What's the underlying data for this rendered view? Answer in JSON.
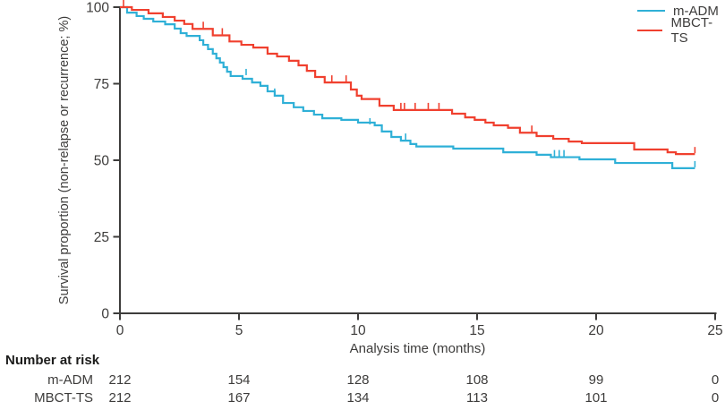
{
  "figure": {
    "background": "#ffffff",
    "text_color": "#3d3c3b",
    "axis_color": "#3d3c3b"
  },
  "chart_data": {
    "type": "line",
    "subtype": "kaplan-meier-step",
    "title": "",
    "xlabel": "Analysis time (months)",
    "ylabel": "Survival proportion (non-relapse or recurrence; %)",
    "xlim": [
      0,
      25
    ],
    "ylim": [
      0,
      100
    ],
    "x_ticks": [
      0,
      5,
      10,
      15,
      20,
      25
    ],
    "y_ticks": [
      0,
      25,
      50,
      75,
      100
    ],
    "grid": false,
    "legend_position": "top-right",
    "series": [
      {
        "name": "m-ADM",
        "color": "#2FB0D7",
        "step_points": [
          [
            0,
            100
          ],
          [
            0.3,
            98.2
          ],
          [
            0.7,
            97.1
          ],
          [
            1.0,
            96.2
          ],
          [
            1.4,
            95.3
          ],
          [
            1.9,
            94.4
          ],
          [
            2.3,
            93.0
          ],
          [
            2.55,
            91.5
          ],
          [
            2.8,
            90.6
          ],
          [
            3.35,
            89.2
          ],
          [
            3.5,
            87.7
          ],
          [
            3.7,
            86.3
          ],
          [
            3.9,
            84.8
          ],
          [
            4.05,
            83.3
          ],
          [
            4.2,
            81.9
          ],
          [
            4.35,
            80.4
          ],
          [
            4.5,
            78.9
          ],
          [
            4.65,
            77.5
          ],
          [
            5.15,
            76.6
          ],
          [
            5.55,
            75.4
          ],
          [
            5.9,
            74.3
          ],
          [
            6.2,
            72.5
          ],
          [
            6.5,
            71.1
          ],
          [
            6.85,
            68.7
          ],
          [
            7.3,
            67.3
          ],
          [
            7.7,
            66.1
          ],
          [
            8.15,
            64.9
          ],
          [
            8.5,
            63.7
          ],
          [
            9.3,
            63.2
          ],
          [
            10.0,
            62.3
          ],
          [
            10.7,
            61.4
          ],
          [
            11.0,
            59.4
          ],
          [
            11.4,
            57.6
          ],
          [
            11.8,
            56.4
          ],
          [
            12.2,
            55.3
          ],
          [
            12.45,
            54.5
          ],
          [
            14.0,
            53.8
          ],
          [
            16.1,
            52.6
          ],
          [
            17.5,
            51.8
          ],
          [
            18.1,
            51.0
          ],
          [
            19.3,
            50.3
          ],
          [
            20.8,
            49.1
          ],
          [
            23.2,
            47.4
          ],
          [
            24.15,
            47.4
          ]
        ],
        "censor_marks": [
          [
            5.3,
            77.5
          ],
          [
            6.5,
            71.1
          ],
          [
            10.5,
            61.4
          ],
          [
            12.0,
            56.4
          ],
          [
            18.25,
            51.0
          ],
          [
            18.45,
            51.0
          ],
          [
            18.65,
            51.0
          ],
          [
            24.15,
            47.4
          ]
        ]
      },
      {
        "name": "MBCT-TS",
        "color": "#F0402F",
        "step_points": [
          [
            0,
            100
          ],
          [
            0.5,
            99.1
          ],
          [
            1.2,
            98.0
          ],
          [
            1.8,
            96.8
          ],
          [
            2.3,
            95.6
          ],
          [
            2.7,
            94.5
          ],
          [
            3.05,
            92.9
          ],
          [
            3.9,
            90.8
          ],
          [
            4.6,
            88.8
          ],
          [
            5.1,
            87.7
          ],
          [
            5.6,
            86.8
          ],
          [
            6.2,
            84.8
          ],
          [
            6.6,
            83.9
          ],
          [
            7.1,
            82.5
          ],
          [
            7.5,
            81.0
          ],
          [
            7.85,
            79.2
          ],
          [
            8.2,
            77.2
          ],
          [
            8.6,
            75.4
          ],
          [
            9.7,
            73.1
          ],
          [
            9.95,
            71.1
          ],
          [
            10.15,
            70.0
          ],
          [
            10.9,
            67.8
          ],
          [
            11.5,
            66.4
          ],
          [
            13.95,
            65.2
          ],
          [
            14.5,
            64.0
          ],
          [
            14.9,
            63.2
          ],
          [
            15.35,
            62.3
          ],
          [
            15.7,
            61.4
          ],
          [
            16.3,
            60.6
          ],
          [
            16.8,
            59.0
          ],
          [
            17.5,
            57.9
          ],
          [
            18.2,
            57.0
          ],
          [
            18.85,
            56.1
          ],
          [
            19.4,
            55.6
          ],
          [
            21.6,
            53.5
          ],
          [
            23.0,
            52.6
          ],
          [
            23.35,
            52.0
          ],
          [
            24.15,
            52.0
          ]
        ],
        "censor_marks": [
          [
            0.15,
            100
          ],
          [
            3.5,
            92.9
          ],
          [
            4.3,
            90.8
          ],
          [
            8.9,
            75.4
          ],
          [
            9.5,
            75.4
          ],
          [
            11.8,
            66.4
          ],
          [
            11.95,
            66.4
          ],
          [
            12.4,
            66.4
          ],
          [
            12.95,
            66.4
          ],
          [
            13.4,
            66.4
          ],
          [
            17.3,
            59.0
          ],
          [
            24.15,
            52.0
          ]
        ]
      }
    ],
    "risk_table": {
      "heading": "Number at risk",
      "times": [
        0,
        5,
        10,
        15,
        20,
        25
      ],
      "rows": [
        {
          "label": "m-ADM",
          "values": [
            "212",
            "154",
            "128",
            "108",
            "99",
            "0"
          ]
        },
        {
          "label": "MBCT-TS",
          "values": [
            "212",
            "167",
            "134",
            "113",
            "101",
            "0"
          ]
        }
      ]
    }
  }
}
